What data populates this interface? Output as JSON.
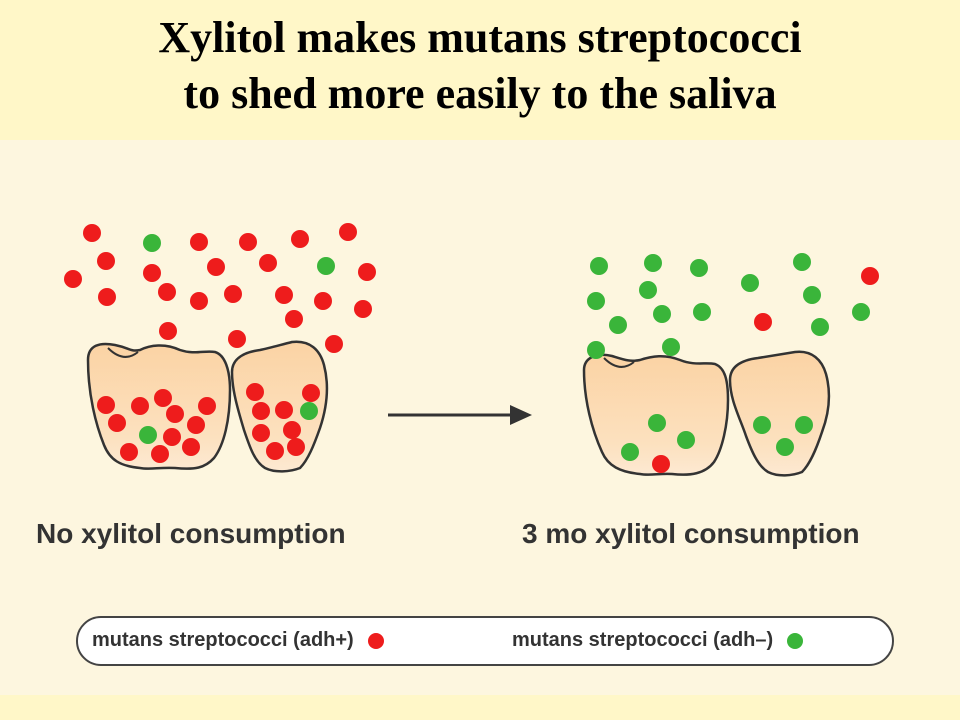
{
  "title": {
    "line1": "Xylitol makes mutans streptococci",
    "line2": "to shed more easily to the saliva"
  },
  "panels": {
    "left_caption": "No xylitol consumption",
    "right_caption": "3 mo xylitol consumption"
  },
  "legend": {
    "adh_plus": "mutans streptococci (adh+)",
    "adh_minus": "mutans streptococci (adh–)"
  },
  "colors": {
    "adh_plus": "#ee1c1c",
    "adh_minus": "#3ab53a",
    "tooth_fill": "#fbd3a4",
    "outline": "#333333"
  }
}
